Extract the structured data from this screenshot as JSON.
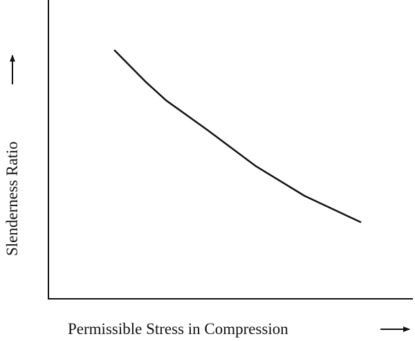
{
  "chart_data": {
    "type": "line",
    "x_label": "Permissible Stress in Compression",
    "y_label": "Slenderness Ratio",
    "x": [
      18.2,
      26.6,
      32.3,
      43.6,
      56.9,
      70.2,
      85.6
    ],
    "values": [
      83.1,
      72.7,
      66.4,
      56.5,
      44.4,
      34.5,
      25.7
    ],
    "color": "#111111",
    "xlim": [
      0,
      100
    ],
    "ylim": [
      0,
      100
    ]
  }
}
